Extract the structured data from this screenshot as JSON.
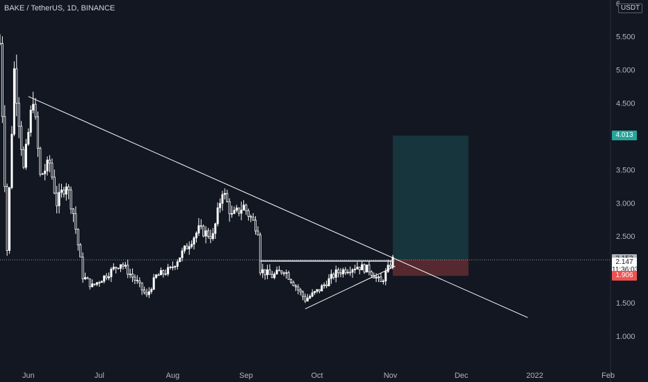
{
  "header": {
    "symbol": "BAKE",
    "quote": "TetherUS",
    "interval": "1D",
    "exchange": "BINANCE",
    "title": "BAKE / TetherUS, 1D, BINANCE"
  },
  "currency_label": "USDT",
  "price_badges": {
    "take_profit": {
      "value": "4.013",
      "color": "#26a69a"
    },
    "entry": {
      "value": "2.153",
      "color": "#b2b5be"
    },
    "current_price": {
      "value": "2.147",
      "countdown": "11:36:03"
    },
    "stop_loss": {
      "value": "1.906",
      "color": "#ef5350"
    }
  },
  "colors": {
    "background": "#131722",
    "candle": "#ffffff",
    "trendline": "#ffffff",
    "profit_zone": "#26a69a",
    "loss_zone": "#ef5350",
    "axis_text": "#b2b5be"
  },
  "chart_data": {
    "type": "candlestick",
    "title": "BAKE / TetherUS, 1D, BINANCE",
    "y_ticks": [
      "1.000",
      "1.500",
      "2.000",
      "2.500",
      "3.000",
      "3.500",
      "4.000",
      "4.500",
      "5.000",
      "5.500",
      "6"
    ],
    "y_tick_values": [
      1.0,
      1.5,
      2.0,
      2.5,
      3.0,
      3.5,
      4.0,
      4.5,
      5.0,
      5.5,
      6.0
    ],
    "ylim": [
      0.52,
      6.05
    ],
    "x_ticks": [
      {
        "label": "Jun",
        "date": "2021-06-01"
      },
      {
        "label": "Jul",
        "date": "2021-07-01"
      },
      {
        "label": "Aug",
        "date": "2021-08-01"
      },
      {
        "label": "Sep",
        "date": "2021-09-01"
      },
      {
        "label": "Oct",
        "date": "2021-10-01"
      },
      {
        "label": "Nov",
        "date": "2021-11-01"
      },
      {
        "label": "Dec",
        "date": "2021-12-01"
      },
      {
        "label": "2022",
        "date": "2022-01-01"
      },
      {
        "label": "Feb",
        "date": "2022-02-01"
      }
    ],
    "xlim": [
      "2021-05-20",
      "2022-02-02"
    ],
    "anchors": [
      {
        "date": "2021-05-20",
        "price": 5.4
      },
      {
        "date": "2021-05-23",
        "price": 2.3
      },
      {
        "date": "2021-05-26",
        "price": 5.0
      },
      {
        "date": "2021-05-30",
        "price": 3.5
      },
      {
        "date": "2021-06-03",
        "price": 4.6
      },
      {
        "date": "2021-06-06",
        "price": 3.4
      },
      {
        "date": "2021-06-10",
        "price": 3.6
      },
      {
        "date": "2021-06-13",
        "price": 3.0
      },
      {
        "date": "2021-06-17",
        "price": 3.3
      },
      {
        "date": "2021-06-20",
        "price": 2.85
      },
      {
        "date": "2021-06-24",
        "price": 1.9
      },
      {
        "date": "2021-06-28",
        "price": 1.75
      },
      {
        "date": "2021-07-05",
        "price": 1.95
      },
      {
        "date": "2021-07-10",
        "price": 2.1
      },
      {
        "date": "2021-07-16",
        "price": 1.85
      },
      {
        "date": "2021-07-21",
        "price": 1.6
      },
      {
        "date": "2021-07-25",
        "price": 1.9
      },
      {
        "date": "2021-07-31",
        "price": 2.0
      },
      {
        "date": "2021-08-06",
        "price": 2.3
      },
      {
        "date": "2021-08-12",
        "price": 2.6
      },
      {
        "date": "2021-08-18",
        "price": 2.5
      },
      {
        "date": "2021-08-22",
        "price": 3.2
      },
      {
        "date": "2021-08-26",
        "price": 2.8
      },
      {
        "date": "2021-08-31",
        "price": 2.95
      },
      {
        "date": "2021-09-06",
        "price": 2.6
      },
      {
        "date": "2021-09-07",
        "price": 2.0
      },
      {
        "date": "2021-09-12",
        "price": 1.9
      },
      {
        "date": "2021-09-17",
        "price": 2.0
      },
      {
        "date": "2021-09-21",
        "price": 1.8
      },
      {
        "date": "2021-09-26",
        "price": 1.55
      },
      {
        "date": "2021-10-02",
        "price": 1.7
      },
      {
        "date": "2021-10-09",
        "price": 1.95
      },
      {
        "date": "2021-10-13",
        "price": 2.0
      },
      {
        "date": "2021-10-18",
        "price": 2.05
      },
      {
        "date": "2021-10-23",
        "price": 2.0
      },
      {
        "date": "2021-10-28",
        "price": 1.8
      },
      {
        "date": "2021-11-02",
        "price": 2.15
      }
    ],
    "trendlines": [
      {
        "name": "descending-resistance",
        "start": {
          "date": "2021-06-01",
          "price": 4.6
        },
        "end": {
          "date": "2021-12-29",
          "price": 1.28
        }
      },
      {
        "name": "ascending-support",
        "start": {
          "date": "2021-09-26",
          "price": 1.41
        },
        "end": {
          "date": "2021-11-03",
          "price": 2.05
        }
      },
      {
        "name": "horizontal-level",
        "start": {
          "date": "2021-09-07",
          "price": 2.13
        },
        "end": {
          "date": "2021-11-02",
          "price": 2.13
        }
      }
    ],
    "position": {
      "type": "long",
      "start_date": "2021-11-02",
      "end_date": "2021-12-04",
      "entry": 2.153,
      "take_profit": 4.013,
      "stop_loss": 1.906
    }
  }
}
